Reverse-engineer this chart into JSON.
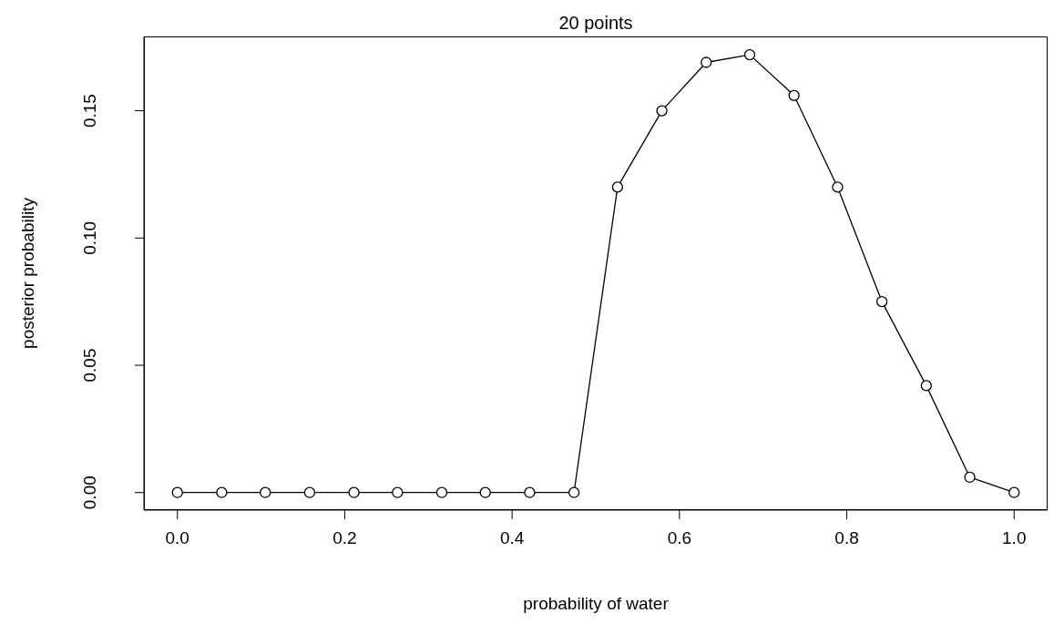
{
  "chart_data": {
    "type": "line",
    "title": "20 points",
    "xlabel": "probability of water",
    "ylabel": "posterior probability",
    "x": [
      0,
      0.053,
      0.105,
      0.158,
      0.211,
      0.263,
      0.316,
      0.368,
      0.421,
      0.474,
      0.526,
      0.579,
      0.632,
      0.684,
      0.737,
      0.789,
      0.842,
      0.895,
      0.947,
      1
    ],
    "series": [
      {
        "color": "#000000",
        "values": [
          0,
          0,
          0,
          0,
          0,
          0,
          0,
          0,
          0,
          0,
          0.12,
          0.15,
          0.169,
          0.172,
          0.156,
          0.12,
          0.075,
          0.042,
          0.006,
          0
        ]
      }
    ],
    "xlim": [
      -0.04,
      1.04
    ],
    "ylim": [
      -0.0069,
      0.1792
    ],
    "xticks": [
      {
        "value": 0,
        "label": "0.0"
      },
      {
        "value": 0.2,
        "label": "0.2"
      },
      {
        "value": 0.4,
        "label": "0.4"
      },
      {
        "value": 0.6,
        "label": "0.6"
      },
      {
        "value": 0.8,
        "label": "0.8"
      },
      {
        "value": 1,
        "label": "1.0"
      }
    ],
    "yticks": [
      {
        "value": 0,
        "label": "0.00"
      },
      {
        "value": 0.05,
        "label": "0.05"
      },
      {
        "value": 0.1,
        "label": "0.10"
      },
      {
        "value": 0.15,
        "label": "0.15"
      }
    ],
    "grid": false,
    "legend": false,
    "marker": "circle",
    "line_style": "solid"
  }
}
